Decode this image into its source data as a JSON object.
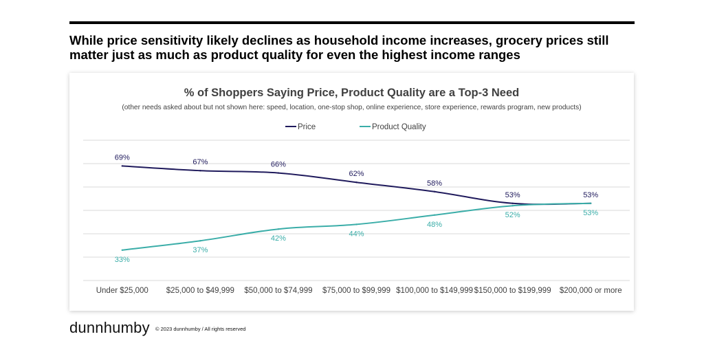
{
  "page": {
    "headline": "While price sensitivity likely declines as household income increases, grocery prices still matter just as much as product quality for even the highest income ranges",
    "logo_text": "dunnhumby",
    "copyright": "© 2023 dunnhumby / All rights reserved"
  },
  "chart_data": {
    "type": "line",
    "title": "% of Shoppers Saying Price, Product Quality are a Top-3 Need",
    "subtitle": "(other needs asked about but not shown here:  speed, location, one-stop shop, online experience, store experience, rewards program, new products)",
    "categories": [
      "Under $25,000",
      "$25,000 to $49,999",
      "$50,000 to $74,999",
      "$75,000 to $99,999",
      "$100,000 to $149,999",
      "$150,000 to $199,999",
      "$200,000 or more"
    ],
    "series": [
      {
        "name": "Price",
        "values": [
          69,
          67,
          66,
          62,
          58,
          53,
          53
        ],
        "labels": [
          "69%",
          "67%",
          "66%",
          "62%",
          "58%",
          "53%",
          "53%"
        ],
        "color": "#1f1a5c",
        "label_position": "above"
      },
      {
        "name": "Product Quality",
        "values": [
          33,
          37,
          42,
          44,
          48,
          52,
          53
        ],
        "labels": [
          "33%",
          "37%",
          "42%",
          "44%",
          "48%",
          "52%",
          "53%"
        ],
        "color": "#3aada8",
        "label_position": "below"
      }
    ],
    "ylim": [
      20,
      80
    ],
    "gridlines": true,
    "legend_position": "top-center",
    "smooth": true
  }
}
